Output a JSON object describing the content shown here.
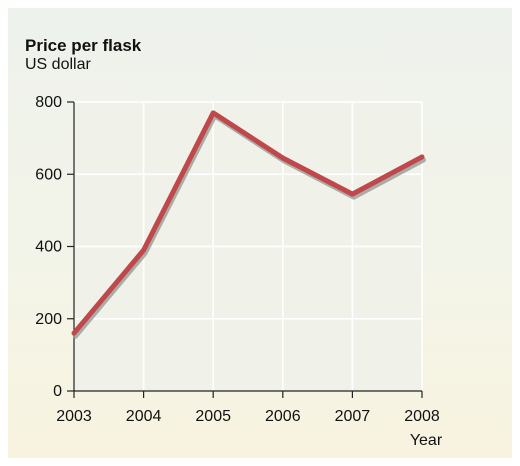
{
  "chart_data": {
    "type": "line",
    "title": "Price per flask",
    "subtitle": "US dollar",
    "xlabel": "Year",
    "ylabel": "",
    "x": [
      2003,
      2004,
      2005,
      2006,
      2007,
      2008
    ],
    "series": [
      {
        "values": [
          160,
          390,
          770,
          645,
          545,
          648
        ]
      }
    ],
    "ylim": [
      0,
      800
    ],
    "yticks": [
      0,
      200,
      400,
      600,
      800
    ],
    "xticks": [
      "2003",
      "2004",
      "2005",
      "2006",
      "2007",
      "2008"
    ],
    "grid": true,
    "legend": "none",
    "colors": {
      "line": "#c0474a",
      "shadow": "#9a9a96",
      "grid": "#ffffff",
      "plot_bg": "#f0f2ea"
    }
  }
}
